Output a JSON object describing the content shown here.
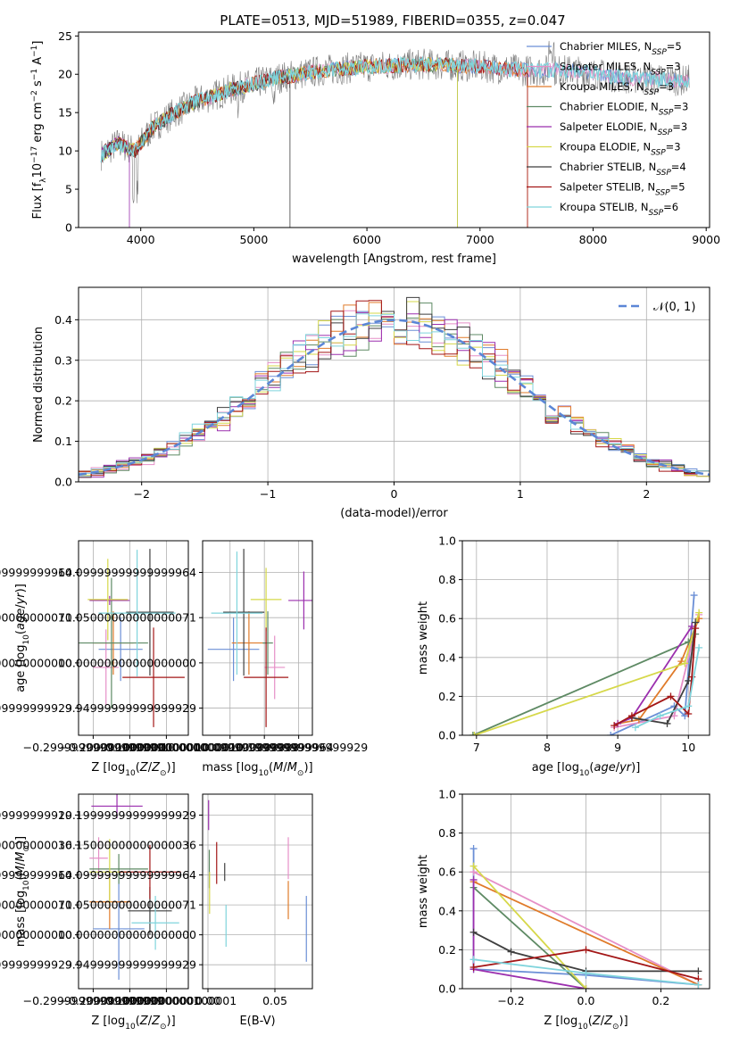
{
  "figure_title": "PLATE=0513, MJD=51989, FIBERID=0355, z=0.047",
  "legend_entries": [
    {
      "key": "chabrier_miles",
      "base": "Chabrier MILES, N",
      "sub": "SSP",
      "tail": "=5",
      "color": "#6b8fd6"
    },
    {
      "key": "salpeter_miles",
      "base": "Salpeter MILES, N",
      "sub": "SSP",
      "tail": "=3",
      "color": "#e58fc7"
    },
    {
      "key": "kroupa_miles",
      "base": "Kroupa MILES, N",
      "sub": "SSP",
      "tail": "=3",
      "color": "#e07b2a"
    },
    {
      "key": "chabrier_elodie",
      "base": "Chabrier ELODIE, N",
      "sub": "SSP",
      "tail": "=3",
      "color": "#5e8a64"
    },
    {
      "key": "salpeter_elodie",
      "base": "Salpeter ELODIE, N",
      "sub": "SSP",
      "tail": "=3",
      "color": "#9b2fae"
    },
    {
      "key": "kroupa_elodie",
      "base": "Kroupa ELODIE, N",
      "sub": "SSP",
      "tail": "=3",
      "color": "#d6d84a"
    },
    {
      "key": "chabrier_stelib",
      "base": "Chabrier STELIB, N",
      "sub": "SSP",
      "tail": "=4",
      "color": "#3f3f3f"
    },
    {
      "key": "salpeter_stelib",
      "base": "Salpeter STELIB, N",
      "sub": "SSP",
      "tail": "=5",
      "color": "#a31616"
    },
    {
      "key": "kroupa_stelib",
      "base": "Kroupa STELIB, N",
      "sub": "SSP",
      "tail": "=6",
      "color": "#7fd4dc"
    }
  ],
  "hist_legend": "𝒩(0, 1)",
  "chart_data": [
    {
      "id": "spectrum",
      "type": "line",
      "xlabel": "wavelength [Angstrom, rest frame]",
      "ylabel": "Flux [f_λ 10^-17 erg cm^-2 s^-1 A^-1]",
      "xlim": [
        3450,
        9030
      ],
      "ylim": [
        0,
        25.5
      ],
      "xticks": [
        4000,
        5000,
        6000,
        7000,
        8000,
        9000
      ],
      "yticks": [
        0,
        5,
        10,
        15,
        20,
        25
      ],
      "continuum": [
        [
          3650,
          9.5
        ],
        [
          3800,
          11
        ],
        [
          3950,
          10
        ],
        [
          4100,
          13
        ],
        [
          4300,
          15
        ],
        [
          4500,
          16.5
        ],
        [
          4800,
          18
        ],
        [
          5200,
          19.5
        ],
        [
          5600,
          20.5
        ],
        [
          6000,
          21
        ],
        [
          6500,
          21.3
        ],
        [
          7000,
          21
        ],
        [
          7400,
          20.5
        ],
        [
          7800,
          20.5
        ],
        [
          8300,
          19.5
        ],
        [
          8800,
          19.2
        ]
      ]
    },
    {
      "id": "residual_hist",
      "type": "bar",
      "xlabel": "(data-model)/error",
      "ylabel": "Normed distribution",
      "xlim": [
        -2.5,
        2.5
      ],
      "ylim": [
        0,
        0.48
      ],
      "xticks": [
        -2,
        -1,
        0,
        1,
        2
      ],
      "yticks": [
        0.0,
        0.1,
        0.2,
        0.3,
        0.4
      ],
      "bin_width": 0.1,
      "series_name": "𝒩(0, 1)"
    },
    {
      "id": "age_vs_Z",
      "type": "scatter",
      "xlabel": "Z [log10(Z/Z⊙)]",
      "ylabel": "age [log10(age/yr)]",
      "xlim": [
        -0.34,
        -0.04
      ],
      "ylim": [
        9.92,
        10.135
      ],
      "xticks": [
        -0.3,
        -0.2,
        -0.1
      ],
      "yticks": [
        9.95,
        10.0,
        10.05,
        10.1
      ],
      "points": [
        {
          "s": "chabrier_miles",
          "x": -0.225,
          "xe": 0.06,
          "y": 10.015,
          "ye": 0.035
        },
        {
          "s": "salpeter_miles",
          "x": -0.265,
          "xe": 0.035,
          "y": 9.995,
          "ye": 0.042
        },
        {
          "s": "kroupa_miles",
          "x": -0.245,
          "xe": 0.055,
          "y": 10.022,
          "ye": 0.035
        },
        {
          "s": "chabrier_elodie",
          "x": -0.25,
          "xe": 0.1,
          "y": 10.022,
          "ye": 0.072
        },
        {
          "s": "salpeter_elodie",
          "x": -0.255,
          "xe": 0.055,
          "y": 10.069,
          "ye": 0.005
        },
        {
          "s": "kroupa_elodie",
          "x": -0.26,
          "xe": 0.055,
          "y": 10.07,
          "ye": 0.045
        },
        {
          "s": "chabrier_stelib",
          "x": -0.145,
          "xe": 0.065,
          "y": 10.056,
          "ye": 0.07
        },
        {
          "s": "salpeter_stelib",
          "x": -0.135,
          "xe": 0.085,
          "y": 9.984,
          "ye": 0.055
        },
        {
          "s": "kroupa_stelib",
          "x": -0.18,
          "xe": 0.105,
          "y": 10.055,
          "ye": 0.07
        }
      ]
    },
    {
      "id": "age_vs_mass",
      "type": "scatter",
      "xlabel": "mass [log10(M/M⊙)]",
      "ylabel": "",
      "xlim": [
        9.92,
        10.24
      ],
      "ylim": [
        9.92,
        10.135
      ],
      "xticks": [
        10.0,
        10.1,
        10.2
      ],
      "yticks": [
        9.95,
        10.0,
        10.05,
        10.1
      ],
      "points": [
        {
          "s": "chabrier_miles",
          "x": 10.01,
          "xe": 0.075,
          "y": 10.015,
          "ye": 0.035
        },
        {
          "s": "salpeter_miles",
          "x": 10.13,
          "xe": 0.03,
          "y": 9.995,
          "ye": 0.035
        },
        {
          "s": "kroupa_miles",
          "x": 10.055,
          "xe": 0.05,
          "y": 10.022,
          "ye": 0.035
        },
        {
          "s": "chabrier_elodie",
          "x": 10.11,
          "xe": 0.015,
          "y": 10.022,
          "ye": 0.035
        },
        {
          "s": "salpeter_elodie",
          "x": 10.215,
          "xe": 0.045,
          "y": 10.069,
          "ye": 0.032
        },
        {
          "s": "kroupa_elodie",
          "x": 10.105,
          "xe": 0.045,
          "y": 10.07,
          "ye": 0.035
        },
        {
          "s": "chabrier_stelib",
          "x": 10.04,
          "xe": 0.06,
          "y": 10.056,
          "ye": 0.07
        },
        {
          "s": "salpeter_stelib",
          "x": 10.105,
          "xe": 0.065,
          "y": 9.984,
          "ye": 0.055
        },
        {
          "s": "kroupa_stelib",
          "x": 10.02,
          "xe": 0.075,
          "y": 10.055,
          "ye": 0.068
        }
      ]
    },
    {
      "id": "mass_weight_vs_age",
      "type": "line",
      "xlabel": "age [log10(age/yr)]",
      "ylabel": "mass weight",
      "xlim": [
        6.8,
        10.3
      ],
      "ylim": [
        0,
        1.0
      ],
      "xticks": [
        7,
        8,
        9,
        10
      ],
      "yticks": [
        0.0,
        0.2,
        0.4,
        0.6,
        0.8,
        1.0
      ],
      "series": [
        {
          "s": "chabrier_miles",
          "pts": [
            [
              8.9,
              0.0
            ],
            [
              9.8,
              0.15
            ],
            [
              9.95,
              0.1
            ],
            [
              10.08,
              0.72
            ]
          ]
        },
        {
          "s": "salpeter_miles",
          "pts": [
            [
              8.95,
              0.04
            ],
            [
              9.8,
              0.1
            ],
            [
              10.15,
              0.62
            ]
          ]
        },
        {
          "s": "kroupa_miles",
          "pts": [
            [
              9.0,
              0.06
            ],
            [
              9.3,
              0.08
            ],
            [
              9.9,
              0.38
            ],
            [
              10.15,
              0.6
            ]
          ]
        },
        {
          "s": "chabrier_elodie",
          "pts": [
            [
              6.95,
              0.0
            ],
            [
              10.0,
              0.48
            ],
            [
              10.1,
              0.52
            ]
          ]
        },
        {
          "s": "salpeter_elodie",
          "pts": [
            [
              9.0,
              0.06
            ],
            [
              9.2,
              0.09
            ],
            [
              10.05,
              0.56
            ]
          ]
        },
        {
          "s": "kroupa_elodie",
          "pts": [
            [
              6.97,
              0.0
            ],
            [
              9.95,
              0.37
            ],
            [
              10.15,
              0.63
            ]
          ]
        },
        {
          "s": "chabrier_stelib",
          "pts": [
            [
              9.2,
              0.09
            ],
            [
              9.7,
              0.06
            ],
            [
              10.0,
              0.28
            ],
            [
              10.1,
              0.58
            ]
          ]
        },
        {
          "s": "salpeter_stelib",
          "pts": [
            [
              8.95,
              0.05
            ],
            [
              9.2,
              0.1
            ],
            [
              9.75,
              0.2
            ],
            [
              10.0,
              0.11
            ],
            [
              10.05,
              0.3
            ],
            [
              10.1,
              0.55
            ]
          ]
        },
        {
          "s": "kroupa_stelib",
          "pts": [
            [
              9.25,
              0.04
            ],
            [
              9.6,
              0.1
            ],
            [
              10.0,
              0.15
            ],
            [
              10.15,
              0.45
            ]
          ]
        }
      ]
    },
    {
      "id": "mass_vs_Z",
      "type": "scatter",
      "xlabel": "Z [log10(Z/Z⊙)]",
      "ylabel": "mass [log10(M/M⊙)]",
      "xlim": [
        -0.34,
        -0.04
      ],
      "ylim": [
        9.91,
        10.235
      ],
      "xticks": [
        -0.3,
        -0.2,
        -0.1
      ],
      "yticks": [
        9.95,
        10.0,
        10.05,
        10.1,
        10.15,
        10.2
      ],
      "points": [
        {
          "s": "chabrier_miles",
          "x": -0.23,
          "xe": 0.07,
          "y": 10.01,
          "ye": 0.085
        },
        {
          "s": "salpeter_miles",
          "x": -0.285,
          "xe": 0.025,
          "y": 10.128,
          "ye": 0.035
        },
        {
          "s": "kroupa_miles",
          "x": -0.255,
          "xe": 0.055,
          "y": 10.055,
          "ye": 0.045
        },
        {
          "s": "chabrier_elodie",
          "x": -0.23,
          "xe": 0.08,
          "y": 10.11,
          "ye": 0.025
        },
        {
          "s": "salpeter_elodie",
          "x": -0.235,
          "xe": 0.07,
          "y": 10.215,
          "ye": 0.02
        },
        {
          "s": "kroupa_elodie",
          "x": -0.255,
          "xe": 0.055,
          "y": 10.105,
          "ye": 0.055
        },
        {
          "s": "chabrier_stelib",
          "x": -0.145,
          "xe": 0.06,
          "y": 10.04,
          "ye": 0.04
        },
        {
          "s": "salpeter_stelib",
          "x": -0.145,
          "xe": 0.085,
          "y": 10.105,
          "ye": 0.045
        },
        {
          "s": "kroupa_stelib",
          "x": -0.13,
          "xe": 0.065,
          "y": 10.02,
          "ye": 0.045
        }
      ]
    },
    {
      "id": "mass_vs_ebv",
      "type": "scatter",
      "xlabel": "E(B-V)",
      "ylabel": "",
      "xlim": [
        -0.004,
        0.078
      ],
      "ylim": [
        9.91,
        10.235
      ],
      "xticks": [
        0.0,
        0.05
      ],
      "yticks": [
        9.95,
        10.0,
        10.05,
        10.1,
        10.15,
        10.2
      ],
      "points": [
        {
          "s": "chabrier_miles",
          "x": 0.0735,
          "xe": 0,
          "y": 10.01,
          "ye": 0.055
        },
        {
          "s": "salpeter_miles",
          "x": 0.06,
          "xe": 0,
          "y": 10.128,
          "ye": 0.035
        },
        {
          "s": "kroupa_miles",
          "x": 0.06,
          "xe": 0,
          "y": 10.058,
          "ye": 0.032
        },
        {
          "s": "chabrier_elodie",
          "x": 0.001,
          "xe": 0,
          "y": 10.11,
          "ye": 0.032
        },
        {
          "s": "salpeter_elodie",
          "x": 0.0005,
          "xe": 0,
          "y": 10.2,
          "ye": 0.025
        },
        {
          "s": "kroupa_elodie",
          "x": 0.0012,
          "xe": 0,
          "y": 10.07,
          "ye": 0.035
        },
        {
          "s": "chabrier_stelib",
          "x": 0.0125,
          "xe": 0,
          "y": 10.105,
          "ye": 0.015
        },
        {
          "s": "salpeter_stelib",
          "x": 0.0065,
          "xe": 0,
          "y": 10.12,
          "ye": 0.035
        },
        {
          "s": "kroupa_stelib",
          "x": 0.0135,
          "xe": 0,
          "y": 10.015,
          "ye": 0.035
        }
      ]
    },
    {
      "id": "mass_weight_vs_Z",
      "type": "line",
      "xlabel": "Z [log10(Z/Z⊙)]",
      "ylabel": "mass weight",
      "xlim": [
        -0.33,
        0.33
      ],
      "ylim": [
        0,
        1.0
      ],
      "xticks": [
        -0.2,
        0.0,
        0.2
      ],
      "yticks": [
        0.0,
        0.2,
        0.4,
        0.6,
        0.8,
        1.0
      ],
      "series": [
        {
          "s": "chabrier_miles",
          "pts": [
            [
              -0.3,
              0.72
            ],
            [
              -0.3,
              0.1
            ],
            [
              0.0,
              0.07
            ],
            [
              0.3,
              0.02
            ]
          ]
        },
        {
          "s": "salpeter_miles",
          "pts": [
            [
              -0.3,
              0.6
            ],
            [
              0.3,
              0.02
            ]
          ]
        },
        {
          "s": "kroupa_miles",
          "pts": [
            [
              -0.3,
              0.55
            ],
            [
              0.3,
              0.02
            ]
          ]
        },
        {
          "s": "chabrier_elodie",
          "pts": [
            [
              -0.3,
              0.52
            ],
            [
              0.0,
              0.0
            ]
          ]
        },
        {
          "s": "salpeter_elodie",
          "pts": [
            [
              -0.3,
              0.56
            ],
            [
              -0.3,
              0.1
            ],
            [
              0.0,
              0.0
            ]
          ]
        },
        {
          "s": "kroupa_elodie",
          "pts": [
            [
              -0.3,
              0.63
            ],
            [
              0.0,
              0.0
            ]
          ]
        },
        {
          "s": "chabrier_stelib",
          "pts": [
            [
              -0.3,
              0.29
            ],
            [
              -0.2,
              0.19
            ],
            [
              0.0,
              0.09
            ],
            [
              0.3,
              0.09
            ]
          ]
        },
        {
          "s": "salpeter_stelib",
          "pts": [
            [
              -0.3,
              0.11
            ],
            [
              0.0,
              0.2
            ],
            [
              0.3,
              0.05
            ]
          ]
        },
        {
          "s": "kroupa_stelib",
          "pts": [
            [
              -0.3,
              0.15
            ],
            [
              0.0,
              0.08
            ],
            [
              0.3,
              0.02
            ]
          ]
        }
      ]
    }
  ]
}
